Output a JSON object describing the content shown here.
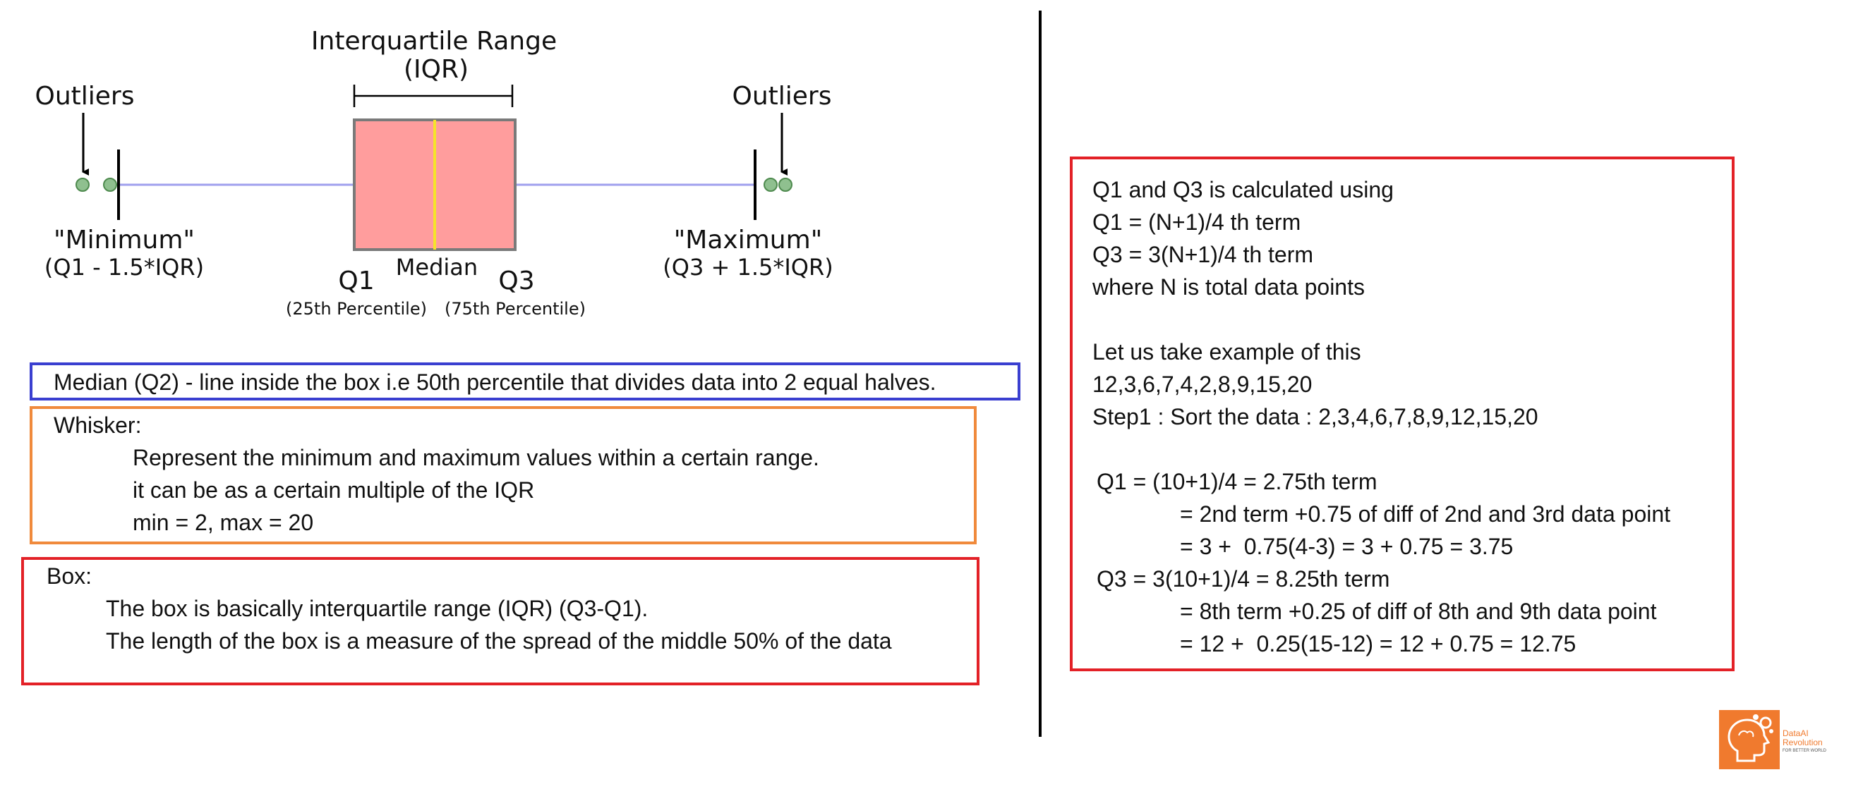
{
  "diagram": {
    "iqr_title_line1": "Interquartile Range",
    "iqr_title_line2": "(IQR)",
    "outliers_left": "Outliers",
    "outliers_right": "Outliers",
    "minimum_label": "\"Minimum\"",
    "minimum_formula": "(Q1 - 1.5*IQR)",
    "maximum_label": "\"Maximum\"",
    "maximum_formula": "(Q3 + 1.5*IQR)",
    "q1_label": "Q1",
    "q3_label": "Q3",
    "median_label": "Median",
    "q1_percentile": "(25th Percentile)",
    "q3_percentile": "(75th Percentile)",
    "colors": {
      "box_fill": "#ff9d9d",
      "box_stroke": "#7a7a7a",
      "median_line": "#f5e32a",
      "whisker_line": "#a0a0ee",
      "outlier_fill": "#8fc08f",
      "outlier_stroke": "#4e8a4e"
    }
  },
  "median_note": {
    "text": "Median (Q2) - line inside the box i.e 50th percentile that divides data into 2 equal halves."
  },
  "whisker_note": {
    "title": "Whisker:",
    "line1": "Represent the minimum and maximum values within a certain range.",
    "line2": "it can be as a certain multiple of the IQR",
    "line3": "min = 2, max = 20"
  },
  "box_note": {
    "title": "Box:",
    "line1": "The box is basically interquartile range (IQR) (Q3-Q1).",
    "line2": "The length of the box is a measure of the spread of the middle 50% of the data"
  },
  "calc_note": {
    "line1": "Q1 and Q3 is calculated using",
    "line2": "Q1 = (N+1)/4 th term",
    "line3": "Q3 = 3(N+1)/4 th term",
    "line4": "where N is total data points",
    "line5": "Let us take example of this",
    "line6": "12,3,6,7,4,2,8,9,15,20",
    "line7": "Step1 : Sort the data : 2,3,4,6,7,8,9,12,15,20",
    "line8": "Q1 = (10+1)/4 = 2.75th term",
    "line9": "= 2nd term +0.75 of diff of 2nd and 3rd data point",
    "line10": "= 3 +  0.75(4-3) = 3 + 0.75 = 3.75",
    "line11": "Q3 = 3(10+1)/4 = 8.25th term",
    "line12": "= 8th term +0.25 of diff of 8th and 9th data point",
    "line13": "= 12 +  0.25(15-12) = 12 + 0.75 = 12.75"
  },
  "logo": {
    "brand_line1": "DataAI",
    "brand_line2": "Revolution",
    "tagline": "FOR BETTER WORLD",
    "color": "#f07a2e"
  }
}
